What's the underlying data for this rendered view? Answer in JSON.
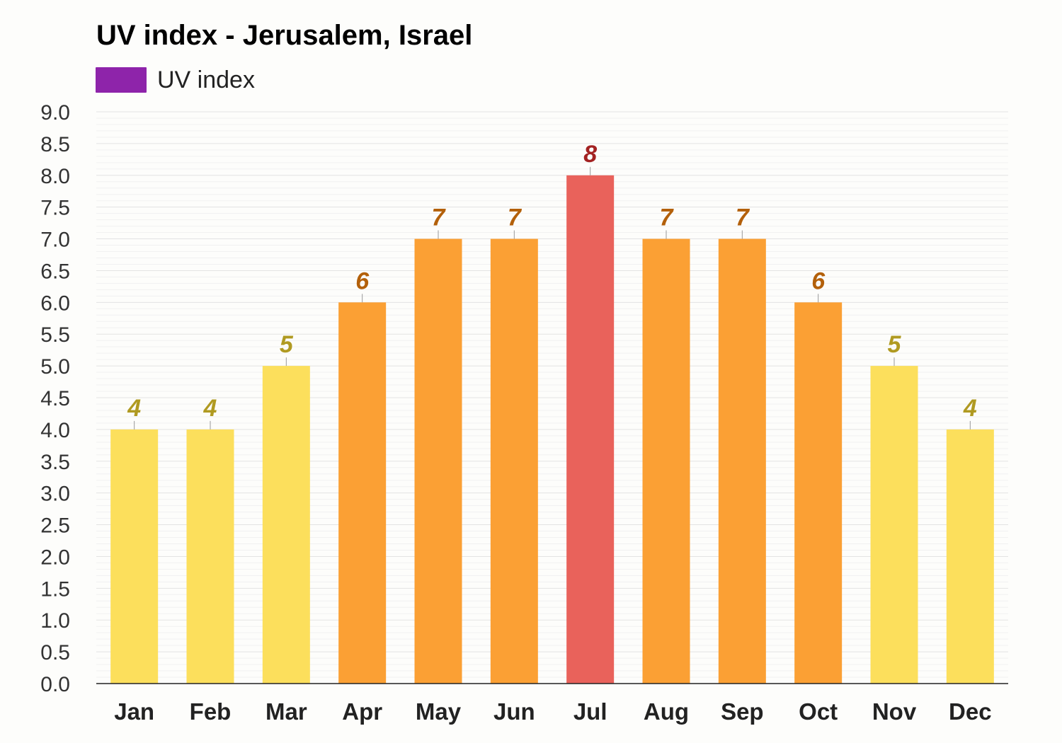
{
  "chart_data": {
    "type": "bar",
    "title": "UV index - Jerusalem, Israel",
    "legend": {
      "label": "UV index",
      "color": "#8e24aa",
      "placement": "top-left"
    },
    "categories": [
      "Jan",
      "Feb",
      "Mar",
      "Apr",
      "May",
      "Jun",
      "Jul",
      "Aug",
      "Sep",
      "Oct",
      "Nov",
      "Dec"
    ],
    "series": [
      {
        "name": "UV index",
        "values": [
          4,
          4,
          5,
          6,
          7,
          7,
          8,
          7,
          7,
          6,
          5,
          4
        ]
      }
    ],
    "data_labels": [
      "4",
      "4",
      "5",
      "6",
      "7",
      "7",
      "8",
      "7",
      "7",
      "6",
      "5",
      "4"
    ],
    "y_ticks": [
      "0.0",
      "0.5",
      "1.0",
      "1.5",
      "2.0",
      "2.5",
      "3.0",
      "3.5",
      "4.0",
      "4.5",
      "5.0",
      "5.5",
      "6.0",
      "6.5",
      "7.0",
      "7.5",
      "8.0",
      "8.5",
      "9.0"
    ],
    "ylim": [
      0,
      9
    ],
    "grid": true,
    "level_colors": {
      "moderate": {
        "bar": "#fcdf5c",
        "label": "#b09a21"
      },
      "high": {
        "bar": "#fba034",
        "label": "#b3600a"
      },
      "very_high": {
        "bar": "#e9625b",
        "label": "#a32222"
      }
    }
  }
}
